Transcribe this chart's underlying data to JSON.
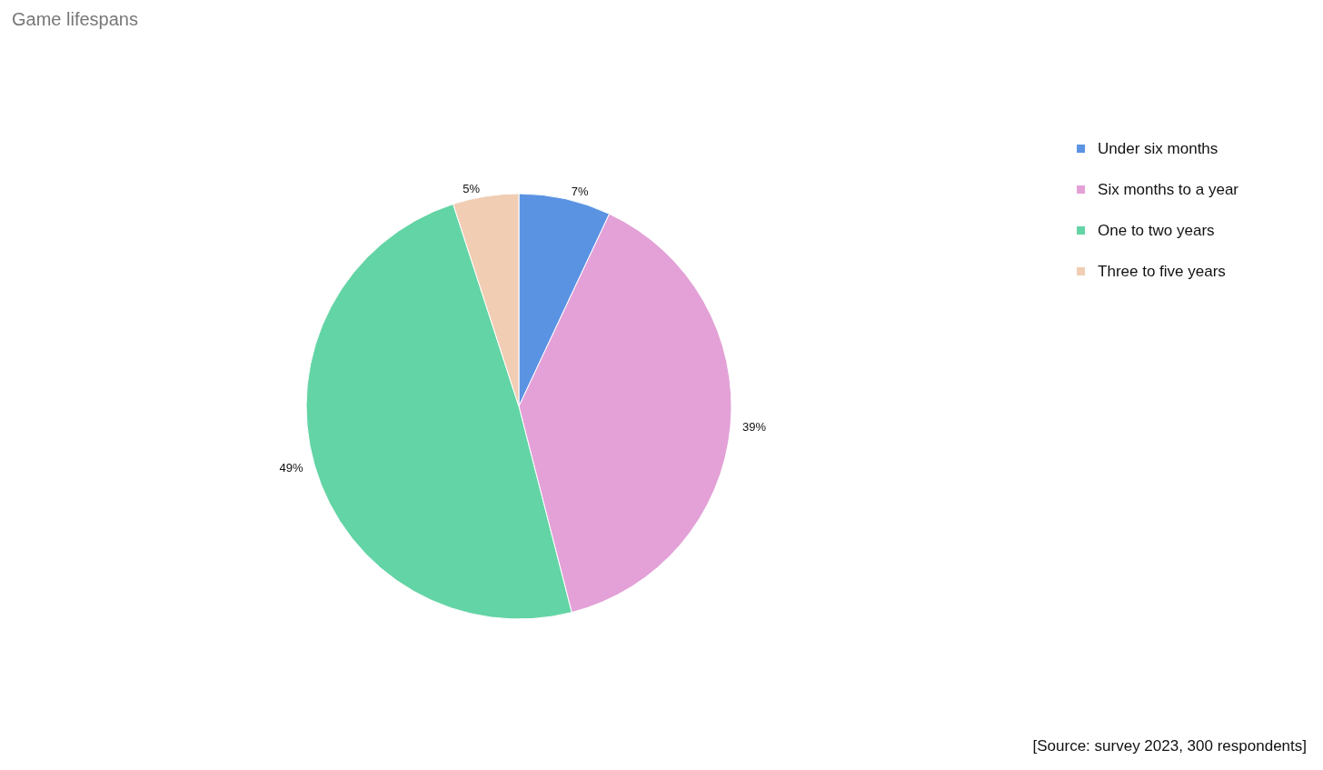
{
  "chart_data": {
    "type": "pie",
    "title": "Game lifespans",
    "categories": [
      "Under six months",
      "Six months to a year",
      "One to two years",
      "Three to five years"
    ],
    "values": [
      7,
      39,
      49,
      5
    ],
    "colors": [
      "#5b93e3",
      "#e3a1d7",
      "#63d4a5",
      "#f0cdb3"
    ],
    "value_labels": [
      "7%",
      "39%",
      "49%",
      "5%"
    ],
    "legend": "top right",
    "annotations": [
      "[Source: survey 2023, 300 respondents]"
    ]
  }
}
